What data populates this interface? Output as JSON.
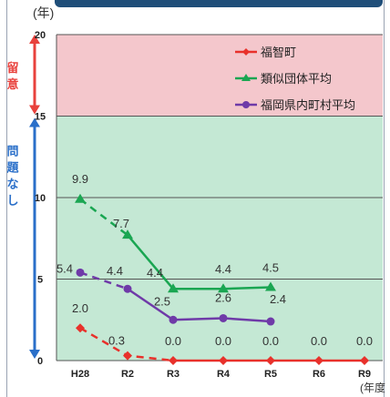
{
  "units": {
    "y": "(年)",
    "x": "(年度"
  },
  "zones": {
    "caution": {
      "label": "留意",
      "color": "#f4c7cc",
      "text_color": "#e8413c"
    },
    "ok": {
      "label": "問題なし",
      "color": "#c4e8d4",
      "text_color": "#2a6fc9"
    }
  },
  "chart_data": {
    "type": "line",
    "categories": [
      "H28",
      "R2",
      "R3",
      "R4",
      "R5",
      "R6",
      "R9"
    ],
    "ylim": [
      0,
      20
    ],
    "yticks": [
      0,
      5,
      10,
      15,
      20
    ],
    "grid": true,
    "legend_position": "top-right",
    "series": [
      {
        "name": "福智町",
        "color": "#e8312b",
        "marker": "diamond",
        "values": [
          2.0,
          0.3,
          0.0,
          0.0,
          0.0,
          0.0,
          0.0
        ],
        "labels": [
          "2.0",
          "0.3",
          "0.0",
          "0.0",
          "0.0",
          "0.0",
          "0.0"
        ]
      },
      {
        "name": "類似団体平均",
        "color": "#1aa652",
        "marker": "triangle",
        "values": [
          9.9,
          7.7,
          4.4,
          4.4,
          4.5,
          null,
          null
        ],
        "labels": [
          "9.9",
          "7.7",
          "4.4",
          "4.4",
          "4.5",
          "",
          ""
        ]
      },
      {
        "name": "福岡県内町村平均",
        "color": "#6f3aa8",
        "marker": "circle",
        "values": [
          5.4,
          4.4,
          2.5,
          2.6,
          2.4,
          null,
          null
        ],
        "labels": [
          "5.4",
          "4.4",
          "2.5",
          "2.6",
          "2.4",
          "",
          ""
        ]
      }
    ]
  }
}
